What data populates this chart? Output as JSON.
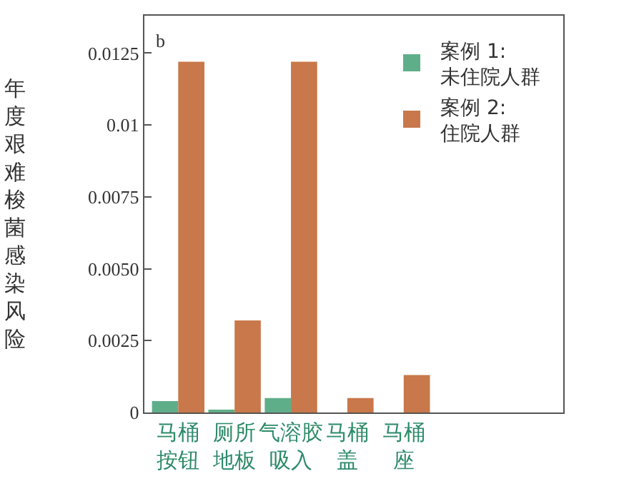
{
  "chart_data": {
    "type": "bar",
    "ylabel": "年度艰难梭菌感染风险",
    "annotations": [
      "b"
    ],
    "categories": [
      "马桶按钮",
      "厕所地板",
      "气溶胶吸入",
      "马桶盖",
      "马桶座"
    ],
    "series": [
      {
        "name": "案例 1:\n未住院人群",
        "color": "#5fae8a",
        "values": [
          0.0004,
          0.0001,
          0.0005,
          0,
          0
        ]
      },
      {
        "name": "案例 2:\n住院人群",
        "color": "#c8784a",
        "values": [
          0.0122,
          0.0032,
          0.0122,
          0.0005,
          0.0013
        ]
      }
    ],
    "ylim": [
      0,
      0.0138
    ],
    "yticks": [
      0.0125,
      0.01,
      0.0075,
      {
        "value": 0.005,
        "label": "0.0050"
      },
      0.0025,
      0
    ],
    "grid": false,
    "legend": "top right"
  }
}
